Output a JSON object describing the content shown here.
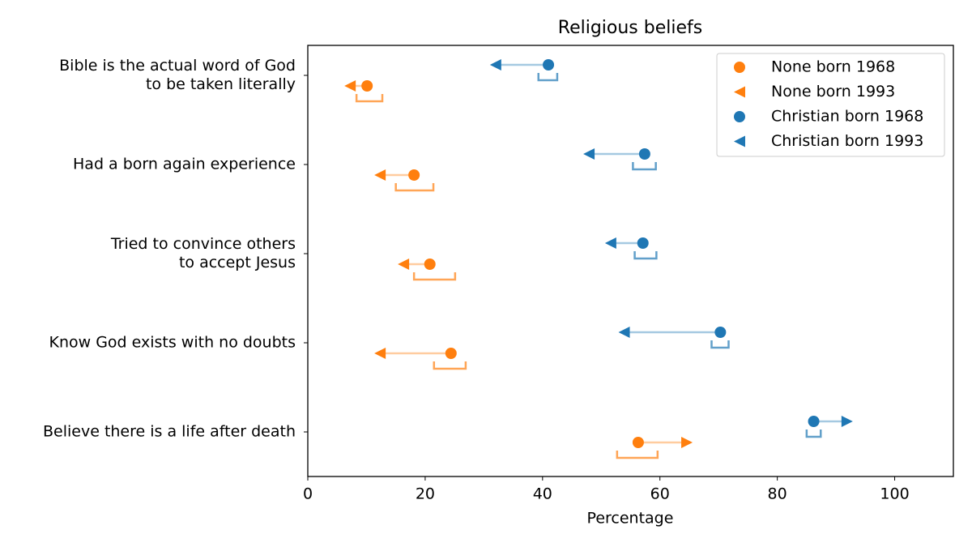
{
  "chart_data": {
    "type": "dumbbell",
    "title": "Religious beliefs",
    "x_label": "Percentage",
    "categories": [
      "Bible is the actual word of God\nto be taken literally",
      "Had a born again experience",
      "Tried to convince others\nto accept Jesus",
      "Know God exists with no doubts",
      "Believe there is a life after death"
    ],
    "series": [
      {
        "name": "None born 1968",
        "color": "#ff7f0e",
        "marker": "circle",
        "values": [
          10.1,
          18.1,
          20.8,
          24.4,
          56.3
        ],
        "interval": [
          [
            8.3,
            12.7
          ],
          [
            15.0,
            21.4
          ],
          [
            18.1,
            25.1
          ],
          [
            21.5,
            26.9
          ],
          [
            52.7,
            59.6
          ]
        ]
      },
      {
        "name": "None born 1993",
        "color": "#ff7f0e",
        "marker": "triangle",
        "values": [
          7.2,
          12.3,
          16.3,
          12.3,
          64.6
        ]
      },
      {
        "name": "Christian born 1968",
        "color": "#1f77b4",
        "marker": "circle",
        "values": [
          41.0,
          57.4,
          57.1,
          70.3,
          86.2
        ],
        "interval": [
          [
            39.3,
            42.5
          ],
          [
            55.4,
            59.3
          ],
          [
            55.7,
            59.4
          ],
          [
            68.8,
            71.7
          ],
          [
            85.0,
            87.4
          ]
        ]
      },
      {
        "name": "Christian born 1993",
        "color": "#1f77b4",
        "marker": "triangle",
        "values": [
          32.0,
          47.9,
          51.6,
          53.9,
          91.9
        ]
      }
    ],
    "xlim": [
      0,
      110
    ],
    "xticks": [
      0,
      20,
      40,
      60,
      80,
      100
    ],
    "legend": "upper right"
  }
}
